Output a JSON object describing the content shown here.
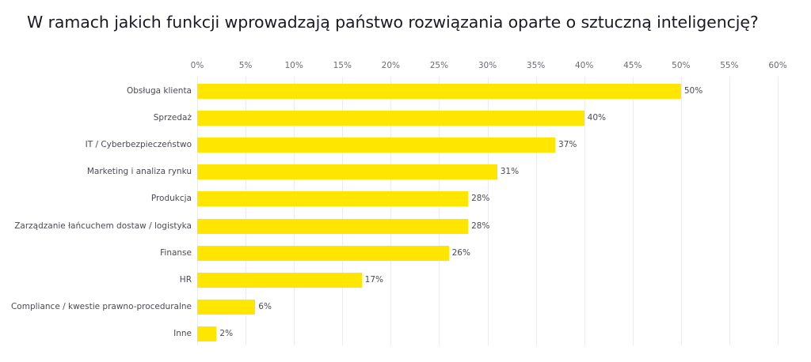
{
  "chart_data": {
    "type": "bar",
    "orientation": "horizontal",
    "title": "W ramach jakich funkcji wprowadzają państwo rozwiązania oparte o sztuczną inteligencję?",
    "xlabel": "",
    "ylabel": "",
    "xlim": [
      0,
      60
    ],
    "x_ticks": [
      "0%",
      "5%",
      "10%",
      "15%",
      "20%",
      "25%",
      "30%",
      "35%",
      "40%",
      "45%",
      "50%",
      "55%",
      "60%"
    ],
    "x_tick_values": [
      0,
      5,
      10,
      15,
      20,
      25,
      30,
      35,
      40,
      45,
      50,
      55,
      60
    ],
    "tick_position": "top",
    "grid": true,
    "legend": null,
    "bar_color": "#ffe600",
    "categories": [
      "Obsługa klienta",
      "Sprzedaż",
      "IT / Cyberbezpieczeństwo",
      "Marketing i analiza rynku",
      "Produkcja",
      "Zarządzanie łańcuchem dostaw / logistyka",
      "Finanse",
      "HR",
      "Compliance / kwestie prawno-proceduralne",
      "Inne"
    ],
    "values": [
      50,
      40,
      37,
      31,
      28,
      28,
      26,
      17,
      6,
      2
    ],
    "value_labels": [
      "50%",
      "40%",
      "37%",
      "31%",
      "28%",
      "28%",
      "26%",
      "17%",
      "6%",
      "2%"
    ]
  }
}
